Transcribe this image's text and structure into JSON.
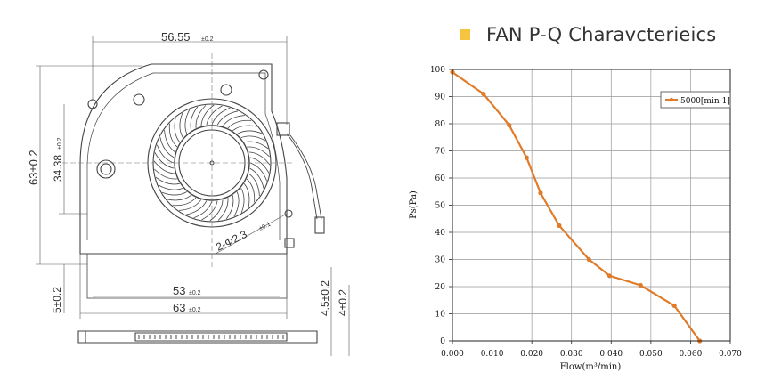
{
  "title": "FAN P-Q  Charavcterieics",
  "title_marker_color": "#f5c542",
  "drawing": {
    "dims": {
      "width_top": "56.55",
      "width_top_tol": "±0.2",
      "height_left": "63±0.2",
      "center_height": "34.38",
      "center_height_tol": "±0.2",
      "hole": "2-Φ2.3",
      "hole_tol": "±0.1",
      "bottom_inner": "53",
      "bottom_inner_tol": "±0.2",
      "bottom_outer": "63",
      "bottom_outer_tol": "±0.2",
      "left_bottom": "5±0.2",
      "right_a": "4.5±0.2",
      "right_b": "4±0.2"
    }
  },
  "chart_data": {
    "type": "line",
    "xlabel": "Flow(m³/min)",
    "ylabel": "Ps(Pa)",
    "xlim": [
      0.0,
      0.07
    ],
    "ylim": [
      0,
      100
    ],
    "x_ticks": [
      "0.000",
      "0.010",
      "0.020",
      "0.030",
      "0.040",
      "0.050",
      "0.060",
      "0.070"
    ],
    "y_ticks": [
      "0",
      "10",
      "20",
      "30",
      "40",
      "50",
      "60",
      "70",
      "80",
      "90",
      "100"
    ],
    "grid": true,
    "legend_position": "top-right",
    "series": [
      {
        "name": "5000[min-1]",
        "color": "#e07b2a",
        "x": [
          0.0,
          0.0078,
          0.0143,
          0.0187,
          0.0222,
          0.0269,
          0.0344,
          0.0396,
          0.0474,
          0.0559,
          0.0623
        ],
        "y": [
          99,
          91,
          79.5,
          67.5,
          54.5,
          42.5,
          30,
          24,
          20.5,
          13,
          0
        ]
      }
    ]
  }
}
